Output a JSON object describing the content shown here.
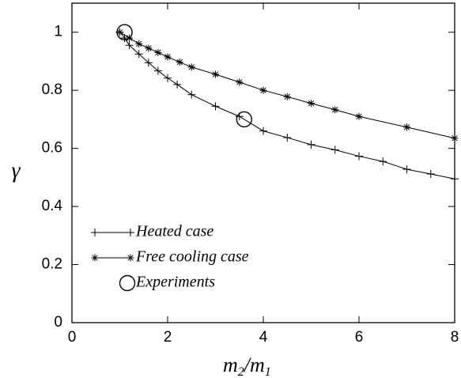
{
  "chart_data": {
    "type": "line",
    "xlabel": "m2/m1",
    "ylabel": "γ",
    "xlim": [
      0,
      8
    ],
    "ylim": [
      0,
      1.1
    ],
    "x_ticks": [
      "0",
      "2",
      "4",
      "6",
      "8"
    ],
    "y_ticks": [
      "0",
      "0.2",
      "0.4",
      "0.6",
      "0.8",
      "1"
    ],
    "grid": false,
    "legend_position": "bottom-left",
    "series": [
      {
        "name": "Heated case",
        "marker": "plus",
        "x": [
          1.0,
          1.1,
          1.2,
          1.4,
          1.6,
          1.8,
          2.0,
          2.2,
          2.5,
          3.0,
          3.5,
          4.0,
          4.5,
          5.0,
          5.5,
          6.0,
          6.5,
          7.0,
          7.5,
          8.0
        ],
        "y": [
          1.0,
          0.98,
          0.955,
          0.925,
          0.895,
          0.867,
          0.842,
          0.82,
          0.785,
          0.745,
          0.71,
          0.66,
          0.637,
          0.613,
          0.595,
          0.573,
          0.555,
          0.528,
          0.512,
          0.495
        ]
      },
      {
        "name": "Free cooling case",
        "marker": "asterisk",
        "x": [
          1.0,
          1.2,
          1.4,
          1.6,
          1.8,
          2.0,
          2.25,
          2.5,
          3.0,
          3.5,
          4.0,
          4.5,
          5.0,
          5.5,
          6.0,
          7.0,
          8.0
        ],
        "y": [
          1.0,
          0.98,
          0.96,
          0.945,
          0.93,
          0.915,
          0.897,
          0.88,
          0.855,
          0.828,
          0.8,
          0.778,
          0.755,
          0.733,
          0.71,
          0.673,
          0.635
        ]
      },
      {
        "name": "Experiments",
        "marker": "open-circle",
        "x": [
          1.1,
          3.6
        ],
        "y": [
          1.0,
          0.7
        ]
      }
    ]
  }
}
